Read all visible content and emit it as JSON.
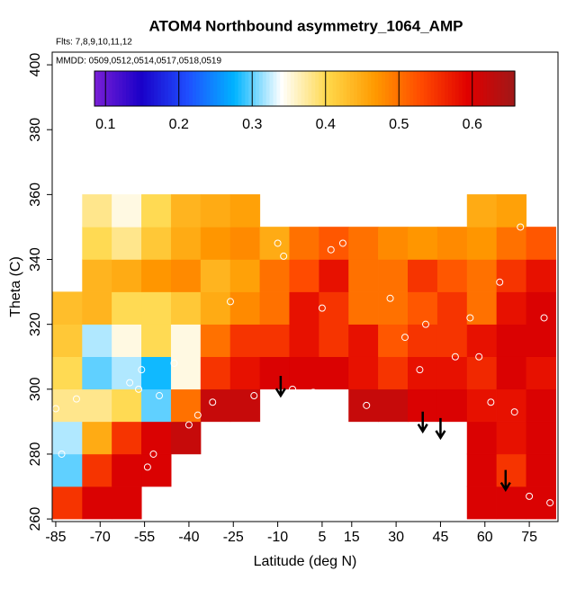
{
  "chart_data": {
    "type": "heatmap",
    "title": "ATOM4 Northbound asymmetry_1064_AMP",
    "subtitle": "Flts: 7,8,9,10,11,12",
    "annotation": "MMDD: 0509,0512,0514,0517,0518,0519",
    "x_label": "Latitude (deg N)",
    "y_label": "Theta (C)",
    "xlim": [
      -86.2,
      84.7
    ],
    "ylim": [
      259.2,
      403.9
    ],
    "xticks": [
      -85,
      -70,
      -55,
      -40,
      -25,
      -10,
      5,
      15,
      30,
      45,
      60,
      75
    ],
    "yticks": [
      260,
      280,
      300,
      320,
      340,
      360,
      380,
      400
    ],
    "x": [
      -81,
      -71,
      -61,
      -51,
      -41,
      -31,
      -21,
      -11,
      -1,
      9,
      19,
      29,
      39,
      49,
      59,
      69,
      79
    ],
    "y": [
      265,
      275,
      285,
      295,
      305,
      315,
      325,
      335,
      345,
      355
    ],
    "z": [
      [
        0.55,
        0.6,
        0.6,
        null,
        null,
        null,
        null,
        null,
        null,
        null,
        null,
        null,
        null,
        null,
        0.6,
        0.6,
        0.6
      ],
      [
        0.3,
        0.55,
        0.6,
        0.6,
        null,
        null,
        null,
        null,
        null,
        null,
        null,
        null,
        null,
        null,
        0.6,
        0.55,
        0.6
      ],
      [
        0.32,
        0.45,
        0.55,
        0.6,
        0.62,
        null,
        null,
        null,
        null,
        null,
        null,
        null,
        null,
        null,
        0.6,
        0.58,
        0.6
      ],
      [
        0.38,
        0.38,
        0.4,
        0.3,
        0.5,
        0.62,
        0.62,
        null,
        null,
        null,
        0.62,
        0.62,
        0.6,
        0.6,
        0.58,
        0.58,
        0.6
      ],
      [
        0.4,
        0.3,
        0.32,
        0.28,
        0.35,
        0.55,
        0.58,
        0.6,
        0.6,
        0.6,
        0.58,
        0.55,
        0.58,
        0.58,
        0.56,
        0.6,
        0.58
      ],
      [
        0.42,
        0.32,
        0.35,
        0.4,
        0.35,
        0.5,
        0.55,
        0.55,
        0.58,
        0.55,
        0.58,
        0.52,
        0.55,
        0.55,
        0.58,
        0.6,
        0.6
      ],
      [
        0.43,
        0.44,
        0.4,
        0.4,
        0.42,
        0.45,
        0.48,
        0.5,
        0.58,
        0.55,
        0.5,
        0.5,
        0.52,
        0.55,
        0.5,
        0.58,
        0.6
      ],
      [
        null,
        0.44,
        0.45,
        0.47,
        0.48,
        0.44,
        0.46,
        0.5,
        0.53,
        0.58,
        0.5,
        0.5,
        0.55,
        0.52,
        0.5,
        0.55,
        0.58
      ],
      [
        null,
        0.4,
        0.38,
        0.42,
        0.45,
        0.47,
        0.48,
        0.45,
        0.5,
        0.52,
        0.5,
        0.48,
        0.47,
        0.48,
        0.47,
        0.5,
        0.52
      ],
      [
        null,
        0.38,
        0.35,
        0.4,
        0.44,
        0.45,
        0.46,
        null,
        null,
        null,
        null,
        null,
        null,
        null,
        0.45,
        0.46,
        null
      ]
    ],
    "zlim": [
      0.085,
      0.658
    ],
    "zticks": [
      0.1,
      0.2,
      0.3,
      0.4,
      0.5,
      0.6
    ],
    "colors": [
      "#7a1fd6",
      "#1a00c8",
      "#1f4fff",
      "#00b4ff",
      "#ffffff",
      "#ffd84a",
      "#ff9a00",
      "#ff4a00",
      "#e00000",
      "#a01818"
    ],
    "points": {
      "color": "#ffffff",
      "x": [
        -85,
        -83,
        -78,
        -60,
        -57,
        -56,
        -54,
        -52,
        -50,
        -45,
        -40,
        -37,
        -32,
        -26,
        -18,
        -10,
        -8,
        -5,
        2,
        5,
        8,
        12,
        20,
        28,
        33,
        38,
        40,
        50,
        55,
        58,
        62,
        65,
        70,
        72,
        75,
        80,
        82
      ],
      "y": [
        294,
        280,
        297,
        302,
        300,
        306,
        276,
        280,
        298,
        308,
        289,
        292,
        296,
        327,
        298,
        345,
        341,
        300,
        299,
        325,
        343,
        345,
        295,
        328,
        316,
        306,
        320,
        310,
        322,
        310,
        296,
        333,
        293,
        350,
        267,
        322,
        265
      ]
    },
    "arrows": {
      "x": [
        -9,
        39,
        45,
        67
      ],
      "y": [
        298,
        287,
        285,
        269
      ]
    }
  }
}
